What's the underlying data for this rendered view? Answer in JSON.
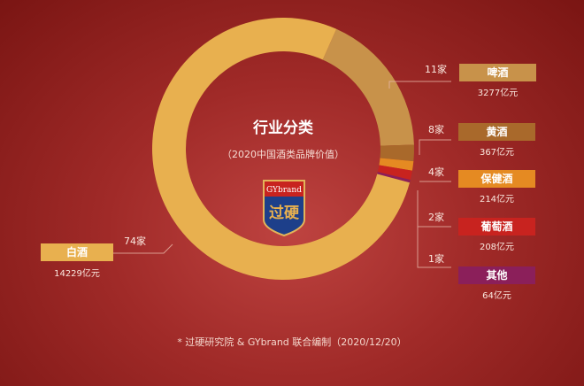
{
  "chart_data": {
    "type": "pie",
    "donut": true,
    "title": "行业分类",
    "subtitle": "（2020中国酒类品牌价值）",
    "unit": "亿元",
    "slices": [
      {
        "label": "啤酒",
        "value": 3277,
        "value_label": "3277亿元",
        "count": "11家",
        "color": "#c8924a"
      },
      {
        "label": "黄酒",
        "value": 367,
        "value_label": "367亿元",
        "count": "8家",
        "color": "#a9692b"
      },
      {
        "label": "保健酒",
        "value": 214,
        "value_label": "214亿元",
        "count": "4家",
        "color": "#e58a22"
      },
      {
        "label": "葡萄酒",
        "value": 208,
        "value_label": "208亿元",
        "count": "2家",
        "color": "#c8231f"
      },
      {
        "label": "其他",
        "value": 64,
        "value_label": "64亿元",
        "count": "1家",
        "color": "#8b1f5a"
      },
      {
        "label": "白酒",
        "value": 14229,
        "value_label": "14229亿元",
        "count": "74家",
        "color": "#e8b04f"
      }
    ]
  },
  "logo": {
    "top": "GYbrand",
    "bottom": "过硬"
  },
  "footnote": "* 过硬研究院 & GYbrand 联合编制（2020/12/20）"
}
